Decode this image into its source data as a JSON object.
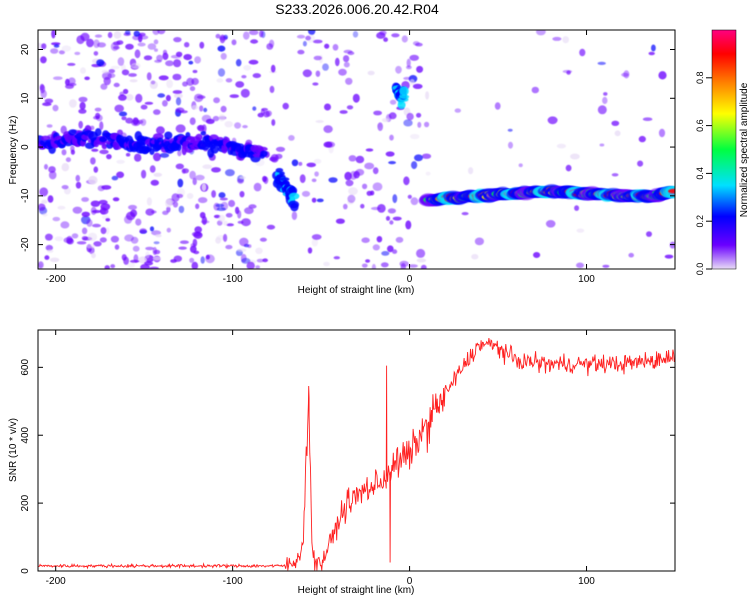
{
  "title": "S233.2026.006.20.42.R04",
  "chart_data": [
    {
      "type": "heatmap",
      "xlabel": "Height of straight line (km)",
      "ylabel": "Frequency (Hz)",
      "xlim": [
        -210,
        150
      ],
      "ylim": [
        -25,
        24
      ],
      "x_ticks": [
        -200,
        -100,
        0,
        100
      ],
      "y_ticks": [
        20,
        10,
        0,
        -10,
        -20
      ],
      "colorbar": {
        "label": "Normalized spectral amplitude",
        "range": [
          0.0,
          1.0
        ],
        "ticks": [
          0.0,
          0.2,
          0.4,
          0.6,
          0.8
        ],
        "tick_labels": [
          "0.0",
          "0.2",
          "0.4",
          "0.6",
          "0.8"
        ],
        "colormap": [
          "#e8dcf6",
          "#6a00ff",
          "#0000ff",
          "#00e0ff",
          "#00ff40",
          "#ffff00",
          "#ff8000",
          "#ff0000",
          "#ff0080"
        ]
      },
      "ridges": [
        {
          "name": "noise band",
          "x": [
            -210,
            -180,
            -150,
            -120,
            -100,
            -90,
            -82
          ],
          "y": [
            1,
            2,
            0,
            1,
            0,
            -1,
            -1
          ],
          "amplitude": 0.25
        },
        {
          "name": "transition",
          "x": [
            -75,
            -70,
            -65
          ],
          "y": [
            -6,
            -8,
            -11
          ],
          "amplitude": 0.35
        },
        {
          "name": "high frequency patch",
          "x": [
            -8,
            -5,
            -3
          ],
          "y": [
            12,
            10,
            11
          ],
          "amplitude": 0.35
        },
        {
          "name": "carrier",
          "x": [
            10,
            20,
            40,
            60,
            80,
            100,
            120,
            140,
            150
          ],
          "y": [
            -11,
            -10.5,
            -10,
            -9.5,
            -9,
            -9.5,
            -10,
            -10,
            -9
          ],
          "amplitude": 0.9
        }
      ]
    },
    {
      "type": "line",
      "xlabel": "Height of straight line (km)",
      "ylabel": "SNR (10 * v/v)",
      "xlim": [
        -210,
        150
      ],
      "ylim": [
        0,
        710
      ],
      "x_ticks": [
        -200,
        -100,
        0,
        100
      ],
      "y_ticks": [
        0,
        200,
        400,
        600
      ],
      "color": "#ff2020",
      "series": [
        {
          "name": "SNR",
          "x": [
            -210,
            -150,
            -100,
            -72,
            -65,
            -62,
            -60,
            -57,
            -55,
            -50,
            -45,
            -40,
            -35,
            -30,
            -25,
            -20,
            -15,
            -10,
            -5,
            0,
            5,
            10,
            15,
            20,
            30,
            40,
            50,
            60,
            80,
            100,
            120,
            140,
            150
          ],
          "y": [
            15,
            15,
            15,
            15,
            20,
            60,
            90,
            540,
            40,
            20,
            80,
            150,
            200,
            220,
            240,
            250,
            270,
            300,
            330,
            340,
            390,
            430,
            480,
            520,
            600,
            670,
            660,
            620,
            610,
            610,
            610,
            620,
            640
          ],
          "spikes": [
            {
              "x": -57,
              "y": 545
            },
            {
              "x": -13,
              "y": 605
            },
            {
              "x": -11,
              "y": 25
            }
          ]
        }
      ]
    }
  ]
}
